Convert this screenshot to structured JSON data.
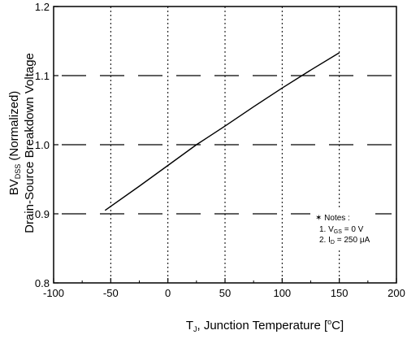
{
  "chart_data": {
    "type": "line",
    "xlabel": {
      "main": "T",
      "sub": "J",
      "rest": ", Junction Temperature [",
      "unit_deg": "o",
      "unit": "C]"
    },
    "ylabel": {
      "line1_main": "BV",
      "line1_sub": "DSS",
      "line1_rest": " (Normalized)",
      "line2": "Drain-Source Breakdown Voltage"
    },
    "xlim": [
      -100,
      200
    ],
    "ylim": [
      0.8,
      1.2
    ],
    "xticks": [
      "-100",
      "-50",
      "0",
      "50",
      "100",
      "150",
      "200"
    ],
    "yticks": [
      "0.8",
      "0.9",
      "1.0",
      "1.1",
      "1.2"
    ],
    "grid": {
      "vertical_dotted_at": [
        -50,
        0,
        50,
        100,
        150
      ],
      "horizontal_dashed_at": [
        0.9,
        1.0,
        1.1
      ]
    },
    "series": [
      {
        "x": [
          -55,
          -25,
          0,
          25,
          50,
          75,
          100,
          125,
          150
        ],
        "y": [
          0.905,
          0.94,
          0.97,
          1.0,
          1.027,
          1.055,
          1.082,
          1.108,
          1.133
        ]
      }
    ],
    "notes": {
      "title": "✶ Notes :",
      "line1_pre": "1. V",
      "line1_sub": "GS",
      "line1_post": " = 0 V",
      "line2_pre": "2. I",
      "line2_sub": "D",
      "line2_post": " = 250 μA"
    }
  }
}
